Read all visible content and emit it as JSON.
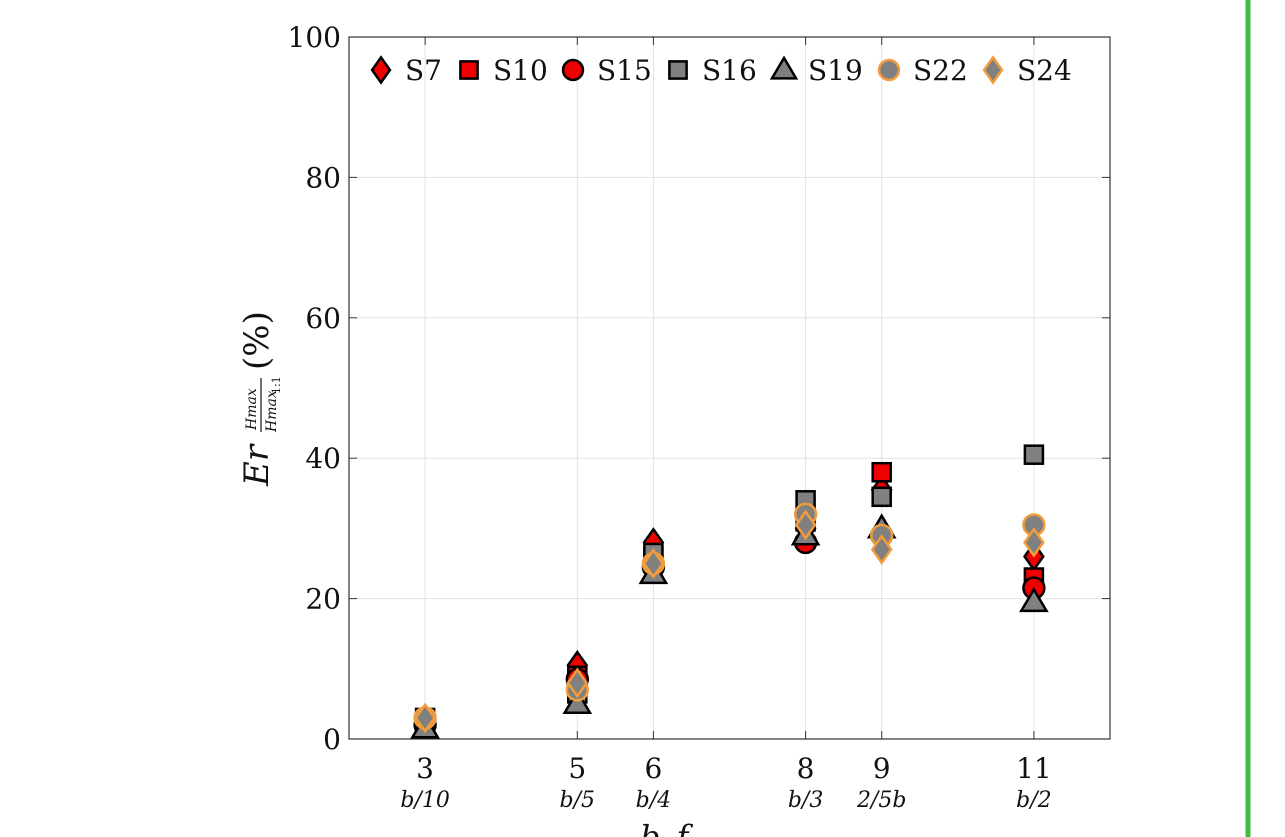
{
  "chart_data": {
    "type": "scatter",
    "x_ticks": [
      {
        "x": 3,
        "label": "3",
        "sublabel": "b/10"
      },
      {
        "x": 5,
        "label": "5",
        "sublabel": "b/5"
      },
      {
        "x": 6,
        "label": "6",
        "sublabel": "b/4"
      },
      {
        "x": 8,
        "label": "8",
        "sublabel": "b/3"
      },
      {
        "x": 9,
        "label": "9",
        "sublabel": "2/5b"
      },
      {
        "x": 11,
        "label": "11",
        "sublabel": "b/2"
      }
    ],
    "xlim": [
      2,
      12
    ],
    "ylim": [
      0,
      100
    ],
    "y_ticks": [
      0,
      20,
      40,
      60,
      80,
      100
    ],
    "ylabel": {
      "main": "Er",
      "frac_num": "Hmax",
      "frac_den": "Hmax",
      "frac_den_sub": "1:1",
      "unit": "(%)"
    },
    "xlabel": "b_f",
    "grid": true,
    "legend_position": "top",
    "series": [
      {
        "name": "S7",
        "marker": "diamond",
        "fill": "#ee0000",
        "stroke": "#000000",
        "x": [
          3,
          5,
          6,
          8,
          9,
          11
        ],
        "y": [
          2.5,
          10.5,
          28,
          30,
          35.5,
          26
        ]
      },
      {
        "name": "S10",
        "marker": "square",
        "fill": "#ee0000",
        "stroke": "#000000",
        "x": [
          3,
          5,
          6,
          8,
          9,
          11
        ],
        "y": [
          2,
          9,
          26,
          31,
          38,
          23
        ]
      },
      {
        "name": "S15",
        "marker": "circle",
        "fill": "#ee0000",
        "stroke": "#000000",
        "x": [
          3,
          5,
          6,
          8,
          9,
          11
        ],
        "y": [
          2,
          8.5,
          24.5,
          28,
          29,
          21.5
        ]
      },
      {
        "name": "S16",
        "marker": "square",
        "fill": "#808080",
        "stroke": "#000000",
        "x": [
          3,
          5,
          6,
          8,
          9,
          11
        ],
        "y": [
          3,
          6.5,
          26.5,
          34,
          34.5,
          40.5
        ]
      },
      {
        "name": "S19",
        "marker": "triangle",
        "fill": "#808080",
        "stroke": "#000000",
        "x": [
          3,
          5,
          6,
          8,
          9,
          11
        ],
        "y": [
          1.5,
          5,
          23.5,
          29,
          30,
          19.5
        ]
      },
      {
        "name": "S22",
        "marker": "circle",
        "fill": "#808080",
        "stroke": "#f39c3c",
        "x": [
          3,
          5,
          6,
          8,
          9,
          11
        ],
        "y": [
          3,
          7,
          25,
          32,
          29,
          30.5
        ]
      },
      {
        "name": "S24",
        "marker": "diamond",
        "fill": "#808080",
        "stroke": "#f39c3c",
        "x": [
          3,
          5,
          6,
          8,
          9,
          11
        ],
        "y": [
          3,
          8,
          25,
          30.5,
          27,
          28
        ]
      }
    ]
  },
  "frame": {
    "right_rule_color": "#3fbf3f"
  }
}
